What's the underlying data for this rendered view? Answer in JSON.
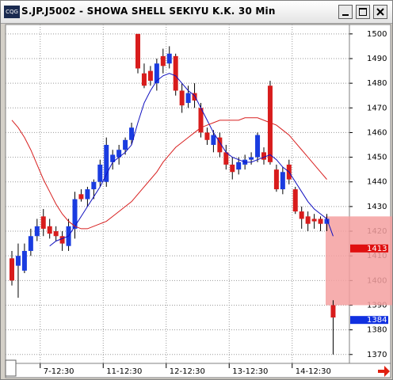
{
  "title": "S.JP.J5002 - SHOWA SHELL SEKIYU K.K. 30 Min",
  "chart_data": {
    "type": "candlestick",
    "categories": [
      null,
      null,
      null,
      null,
      null,
      "7-12:30",
      null,
      null,
      null,
      null,
      null,
      null,
      null,
      null,
      null,
      "11-12:30",
      null,
      null,
      null,
      null,
      null,
      null,
      null,
      null,
      null,
      "12-12:30",
      null,
      null,
      null,
      null,
      null,
      null,
      null,
      null,
      null,
      "13-12:30",
      null,
      null,
      null,
      null,
      null,
      null,
      null,
      null,
      null,
      "14-12:30",
      null,
      null,
      null,
      null,
      null,
      null
    ],
    "open": [
      1409,
      1406,
      1404,
      1412,
      1418,
      1426,
      1422,
      1420,
      1418,
      1414,
      1421,
      1435,
      1433,
      1437,
      1440,
      1440,
      1448,
      1450,
      1453,
      1457,
      1500,
      1484,
      1485,
      1480,
      1491,
      1488,
      1491,
      1477,
      1472,
      1476,
      1470,
      1460,
      1455,
      1458,
      1452,
      1447,
      1445,
      1447,
      1449,
      1450,
      1452,
      1479,
      1445,
      1437,
      1447,
      1437,
      1428,
      1426,
      1425,
      1425,
      1423,
      1390
    ],
    "high": [
      1412,
      1415,
      1415,
      1421,
      1425,
      1429,
      1425,
      1422,
      1420,
      1425,
      1436,
      1437,
      1438,
      1441,
      1449,
      1458,
      1453,
      1455,
      1458,
      1464,
      1500,
      1488,
      1487,
      1490,
      1494,
      1495,
      1492,
      1480,
      1479,
      1480,
      1472,
      1462,
      1461,
      1460,
      1455,
      1450,
      1450,
      1451,
      1452,
      1460,
      1454,
      1481,
      1447,
      1446,
      1449,
      1438,
      1430,
      1428,
      1427,
      1426,
      1427,
      1392
    ],
    "low": [
      1398,
      1393,
      1403,
      1410,
      1416,
      1418,
      1417,
      1416,
      1412,
      1412,
      1417,
      1432,
      1430,
      1433,
      1438,
      1438,
      1445,
      1447,
      1451,
      1455,
      1484,
      1478,
      1479,
      1477,
      1484,
      1486,
      1475,
      1468,
      1470,
      1470,
      1458,
      1455,
      1452,
      1450,
      1445,
      1441,
      1443,
      1445,
      1447,
      1448,
      1447,
      1447,
      1436,
      1435,
      1439,
      1427,
      1421,
      1420,
      1421,
      1420,
      1420,
      1370
    ],
    "close": [
      1400,
      1410,
      1412,
      1418,
      1422,
      1421,
      1419,
      1418,
      1415,
      1422,
      1433,
      1433,
      1437,
      1440,
      1447,
      1455,
      1451,
      1453,
      1457,
      1462,
      1486,
      1479,
      1481,
      1488,
      1487,
      1492,
      1477,
      1471,
      1476,
      1473,
      1460,
      1457,
      1459,
      1452,
      1447,
      1444,
      1448,
      1449,
      1450,
      1459,
      1449,
      1448,
      1437,
      1444,
      1441,
      1428,
      1425,
      1423,
      1424,
      1423,
      1425,
      1385
    ],
    "up_color": "#1a3ce0",
    "down_color": "#d81c1c",
    "overlays": [
      {
        "color": "#1010c0",
        "values": [
          null,
          null,
          null,
          null,
          null,
          null,
          1414,
          1416,
          1417,
          1418,
          1422,
          1426,
          1430,
          1434,
          1438,
          1443,
          1448,
          1450,
          1452,
          1455,
          1464,
          1472,
          1477,
          1481,
          1483,
          1484,
          1483,
          1480,
          1477,
          1475,
          1470,
          1465,
          1460,
          1456,
          1452,
          1450,
          1449,
          1448,
          1448,
          1449,
          1450,
          1451,
          1449,
          1446,
          1444,
          1440,
          1436,
          1432,
          1429,
          1427,
          1425,
          1418
        ]
      },
      {
        "color": "#d82020",
        "values": [
          1465,
          1462,
          1458,
          1453,
          1447,
          1441,
          1436,
          1431,
          1427,
          1424,
          1422,
          1421,
          1421,
          1422,
          1423,
          1424,
          1426,
          1428,
          1430,
          1432,
          1435,
          1438,
          1441,
          1444,
          1448,
          1451,
          1454,
          1456,
          1458,
          1460,
          1462,
          1463,
          1464,
          1465,
          1465,
          1465,
          1465,
          1466,
          1466,
          1466,
          1465,
          1464,
          1463,
          1461,
          1459,
          1456,
          1453,
          1450,
          1447,
          1444,
          1441,
          null
        ]
      }
    ],
    "highlight_band": [
      1390,
      1426
    ],
    "highlight_color": "#f4a0a0",
    "price_tags": [
      {
        "value": 1413,
        "color": "#e01010"
      },
      {
        "value": 1384,
        "color": "#1030e0"
      }
    ],
    "ylim": [
      1366.4,
      1503.8
    ],
    "yticks": [
      1370,
      1380,
      1390,
      1400,
      1410,
      1420,
      1430,
      1440,
      1450,
      1460,
      1470,
      1480,
      1490,
      1500
    ],
    "grid": true
  }
}
